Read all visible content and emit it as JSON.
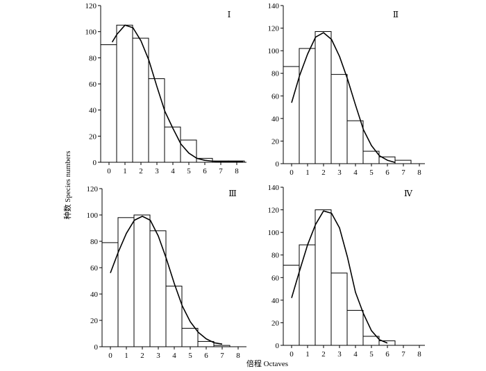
{
  "figure": {
    "ylabel": "种数 Species numbers",
    "xlabel": "倍程  Octaves"
  },
  "chart_data": [
    {
      "type": "bar",
      "panel_label": "Ⅰ",
      "categories": [
        "0",
        "1",
        "2",
        "3",
        "4",
        "5",
        "6",
        "7",
        "8"
      ],
      "values": [
        90,
        105,
        95,
        64,
        27,
        17,
        3,
        1,
        1
      ],
      "fit_curve": {
        "x": [
          0.2,
          0.5,
          1,
          1.5,
          2,
          2.5,
          3,
          3.5,
          4,
          4.5,
          5,
          5.5,
          6,
          6.5,
          7,
          7.5,
          8,
          8.4
        ],
        "y": [
          92,
          98,
          105,
          103,
          93,
          78,
          58,
          39,
          26,
          14,
          7,
          3,
          1.5,
          0.8,
          0.5,
          0.5,
          0.5,
          0.5
        ]
      },
      "ylim": [
        0,
        120
      ],
      "yticks": [
        0,
        20,
        40,
        60,
        80,
        100,
        120
      ]
    },
    {
      "type": "bar",
      "panel_label": "Ⅱ",
      "categories": [
        "0",
        "1",
        "2",
        "3",
        "4",
        "5",
        "6",
        "7",
        "8"
      ],
      "values": [
        86,
        102,
        117,
        79,
        38,
        11,
        6,
        3,
        0
      ],
      "fit_curve": {
        "x": [
          0,
          0.5,
          1,
          1.5,
          2,
          2.5,
          3,
          3.5,
          4,
          4.5,
          5,
          5.5,
          6,
          6.5
        ],
        "y": [
          54,
          78,
          97,
          112,
          116,
          110,
          95,
          75,
          52,
          30,
          16,
          7,
          3,
          1
        ]
      },
      "ylim": [
        0,
        140
      ],
      "yticks": [
        0,
        20,
        40,
        60,
        80,
        100,
        120,
        140
      ]
    },
    {
      "type": "bar",
      "panel_label": "Ⅲ",
      "categories": [
        "0",
        "1",
        "2",
        "3",
        "4",
        "5",
        "6",
        "7",
        "8"
      ],
      "values": [
        79,
        98,
        100,
        88,
        46,
        14,
        4,
        1,
        0
      ],
      "fit_curve": {
        "x": [
          0,
          0.5,
          1,
          1.5,
          2,
          2.5,
          3,
          3.5,
          4,
          4.5,
          5,
          5.5,
          6,
          6.5,
          7
        ],
        "y": [
          56,
          72,
          86,
          96,
          99,
          96,
          84,
          67,
          48,
          31,
          19,
          11,
          6,
          3,
          2
        ]
      },
      "ylim": [
        0,
        120
      ],
      "yticks": [
        0,
        20,
        40,
        60,
        80,
        100,
        120
      ]
    },
    {
      "type": "bar",
      "panel_label": "Ⅳ",
      "categories": [
        "0",
        "1",
        "2",
        "3",
        "4",
        "5",
        "6",
        "7",
        "8"
      ],
      "values": [
        71,
        89,
        120,
        64,
        31,
        8,
        4,
        0,
        0
      ],
      "fit_curve": {
        "x": [
          0,
          0.5,
          1,
          1.5,
          2,
          2.5,
          3,
          3.5,
          4,
          4.5,
          5,
          5.5,
          6
        ],
        "y": [
          42,
          66,
          89,
          107,
          119,
          117,
          104,
          78,
          47,
          28,
          13,
          5,
          2
        ]
      },
      "ylim": [
        0,
        140
      ],
      "yticks": [
        0,
        20,
        40,
        60,
        80,
        100,
        120,
        140
      ]
    }
  ]
}
